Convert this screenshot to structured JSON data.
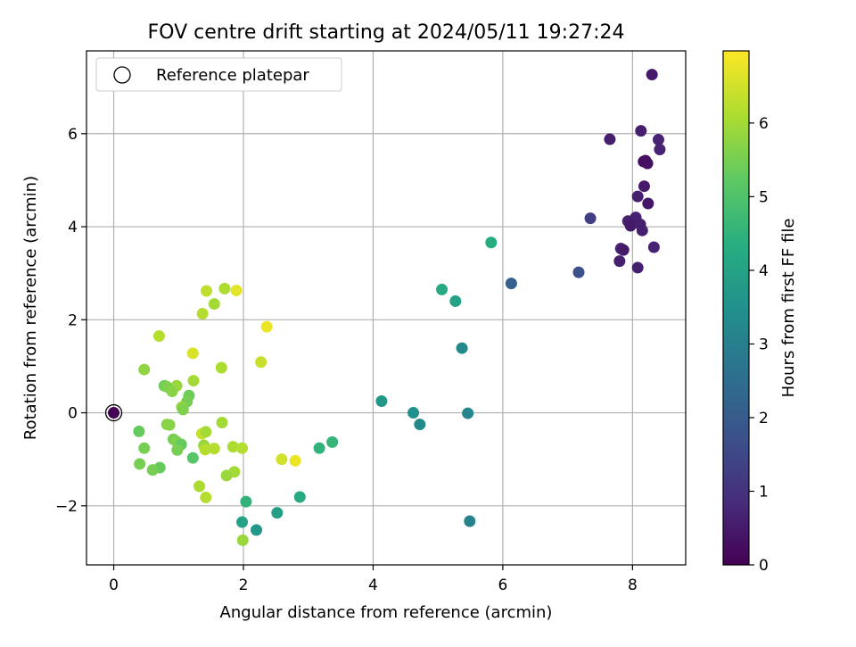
{
  "chart_data": {
    "type": "scatter",
    "title": "FOV centre drift starting at 2024/05/11 19:27:24",
    "xlabel": "Angular distance from reference (arcmin)",
    "ylabel": "Rotation from reference (arcmin)",
    "xlim": [
      -0.42,
      8.82
    ],
    "ylim": [
      -3.27,
      7.78
    ],
    "xticks": [
      0,
      2,
      4,
      6,
      8
    ],
    "yticks": [
      -2,
      0,
      2,
      4,
      6
    ],
    "ytick_labels": [
      "−2",
      "0",
      "2",
      "4",
      "6"
    ],
    "grid": true,
    "legend": {
      "placement": "top-left",
      "entries": [
        {
          "label": "Reference platepar",
          "marker": "open-circle",
          "point": [
            0,
            0
          ]
        }
      ]
    },
    "colorbar": {
      "label": "Hours from first FF file",
      "colormap": "viridis",
      "range": [
        0,
        6.98
      ],
      "ticks": [
        0,
        1,
        2,
        3,
        4,
        5,
        6
      ]
    },
    "points": [
      {
        "x": 8.3,
        "y": 7.27,
        "h": 0.5
      },
      {
        "x": 8.4,
        "y": 5.87,
        "h": 0.7
      },
      {
        "x": 8.42,
        "y": 5.66,
        "h": 0.7
      },
      {
        "x": 8.13,
        "y": 6.06,
        "h": 0.6
      },
      {
        "x": 7.65,
        "y": 5.88,
        "h": 0.6
      },
      {
        "x": 8.2,
        "y": 5.42,
        "h": 0.3
      },
      {
        "x": 8.23,
        "y": 5.36,
        "h": 0.3
      },
      {
        "x": 8.17,
        "y": 5.4,
        "h": 0.3
      },
      {
        "x": 8.18,
        "y": 4.87,
        "h": 0.5
      },
      {
        "x": 8.08,
        "y": 4.65,
        "h": 0.6
      },
      {
        "x": 8.24,
        "y": 4.5,
        "h": 0.4
      },
      {
        "x": 7.35,
        "y": 4.18,
        "h": 1.3
      },
      {
        "x": 8.05,
        "y": 4.2,
        "h": 0.7
      },
      {
        "x": 7.93,
        "y": 4.12,
        "h": 0.6
      },
      {
        "x": 7.97,
        "y": 4.02,
        "h": 0.5
      },
      {
        "x": 8.12,
        "y": 4.05,
        "h": 0.6
      },
      {
        "x": 8.15,
        "y": 3.92,
        "h": 0.6
      },
      {
        "x": 8.33,
        "y": 3.56,
        "h": 0.7
      },
      {
        "x": 7.82,
        "y": 3.53,
        "h": 0.7
      },
      {
        "x": 7.86,
        "y": 3.5,
        "h": 0.5
      },
      {
        "x": 7.8,
        "y": 3.26,
        "h": 0.6
      },
      {
        "x": 8.08,
        "y": 3.12,
        "h": 0.6
      },
      {
        "x": 7.17,
        "y": 3.02,
        "h": 1.7
      },
      {
        "x": 6.13,
        "y": 2.78,
        "h": 2.1
      },
      {
        "x": 5.82,
        "y": 3.66,
        "h": 4.3
      },
      {
        "x": 5.06,
        "y": 2.65,
        "h": 4.2
      },
      {
        "x": 5.27,
        "y": 2.4,
        "h": 4.0
      },
      {
        "x": 5.37,
        "y": 1.39,
        "h": 3.3
      },
      {
        "x": 4.13,
        "y": 0.25,
        "h": 3.7
      },
      {
        "x": 4.62,
        "y": 0.0,
        "h": 3.5
      },
      {
        "x": 4.72,
        "y": -0.25,
        "h": 3.3
      },
      {
        "x": 5.46,
        "y": -0.01,
        "h": 3.2
      },
      {
        "x": 5.49,
        "y": -2.33,
        "h": 3.1
      },
      {
        "x": 3.37,
        "y": -0.63,
        "h": 4.6
      },
      {
        "x": 3.17,
        "y": -0.76,
        "h": 4.5
      },
      {
        "x": 2.87,
        "y": -1.81,
        "h": 4.2
      },
      {
        "x": 2.52,
        "y": -2.15,
        "h": 3.9
      },
      {
        "x": 2.2,
        "y": -2.52,
        "h": 3.7
      },
      {
        "x": 1.98,
        "y": -2.35,
        "h": 4.0
      },
      {
        "x": 2.04,
        "y": -1.91,
        "h": 4.5
      },
      {
        "x": 1.99,
        "y": -2.74,
        "h": 5.9
      },
      {
        "x": 2.36,
        "y": 1.85,
        "h": 6.8
      },
      {
        "x": 2.27,
        "y": 1.09,
        "h": 6.4
      },
      {
        "x": 1.89,
        "y": 2.63,
        "h": 6.7
      },
      {
        "x": 1.71,
        "y": 2.67,
        "h": 6.1
      },
      {
        "x": 1.43,
        "y": 2.62,
        "h": 6.3
      },
      {
        "x": 1.55,
        "y": 2.34,
        "h": 6.0
      },
      {
        "x": 1.37,
        "y": 2.13,
        "h": 6.2
      },
      {
        "x": 0.7,
        "y": 1.65,
        "h": 6.2
      },
      {
        "x": 1.22,
        "y": 1.28,
        "h": 6.6
      },
      {
        "x": 1.66,
        "y": 0.97,
        "h": 6.1
      },
      {
        "x": 1.23,
        "y": 0.69,
        "h": 6.0
      },
      {
        "x": 0.47,
        "y": 0.93,
        "h": 5.8
      },
      {
        "x": 0.78,
        "y": 0.58,
        "h": 5.4
      },
      {
        "x": 0.97,
        "y": 0.58,
        "h": 5.9
      },
      {
        "x": 0.82,
        "y": 0.56,
        "h": 5.6
      },
      {
        "x": 0.9,
        "y": 0.46,
        "h": 5.7
      },
      {
        "x": 1.16,
        "y": 0.37,
        "h": 5.4
      },
      {
        "x": 1.13,
        "y": 0.24,
        "h": 5.5
      },
      {
        "x": 1.05,
        "y": 0.12,
        "h": 5.8
      },
      {
        "x": 1.07,
        "y": 0.07,
        "h": 5.6
      },
      {
        "x": 1.67,
        "y": -0.21,
        "h": 6.0
      },
      {
        "x": 0.82,
        "y": -0.25,
        "h": 5.7
      },
      {
        "x": 0.86,
        "y": -0.26,
        "h": 5.7
      },
      {
        "x": 0.39,
        "y": -0.4,
        "h": 5.3
      },
      {
        "x": 1.36,
        "y": -0.45,
        "h": 6.4
      },
      {
        "x": 1.42,
        "y": -0.41,
        "h": 6.0
      },
      {
        "x": 0.92,
        "y": -0.57,
        "h": 5.5
      },
      {
        "x": 0.97,
        "y": -0.62,
        "h": 5.6
      },
      {
        "x": 1.04,
        "y": -0.68,
        "h": 5.3
      },
      {
        "x": 1.39,
        "y": -0.7,
        "h": 5.9
      },
      {
        "x": 1.84,
        "y": -0.73,
        "h": 6.1
      },
      {
        "x": 1.98,
        "y": -0.76,
        "h": 6.2
      },
      {
        "x": 1.55,
        "y": -0.77,
        "h": 6.2
      },
      {
        "x": 1.41,
        "y": -0.79,
        "h": 6.2
      },
      {
        "x": 0.98,
        "y": -0.8,
        "h": 5.5
      },
      {
        "x": 0.47,
        "y": -0.76,
        "h": 5.5
      },
      {
        "x": 1.22,
        "y": -0.97,
        "h": 5.1
      },
      {
        "x": 2.59,
        "y": -1.0,
        "h": 6.5
      },
      {
        "x": 2.8,
        "y": -1.03,
        "h": 6.8
      },
      {
        "x": 0.4,
        "y": -1.1,
        "h": 5.5
      },
      {
        "x": 0.71,
        "y": -1.18,
        "h": 5.3
      },
      {
        "x": 0.6,
        "y": -1.23,
        "h": 5.5
      },
      {
        "x": 1.86,
        "y": -1.27,
        "h": 6.0
      },
      {
        "x": 1.74,
        "y": -1.35,
        "h": 5.9
      },
      {
        "x": 1.32,
        "y": -1.58,
        "h": 6.1
      },
      {
        "x": 1.42,
        "y": -1.82,
        "h": 6.2
      },
      {
        "x": 0.0,
        "y": 0.0,
        "h": 0.0
      }
    ]
  }
}
